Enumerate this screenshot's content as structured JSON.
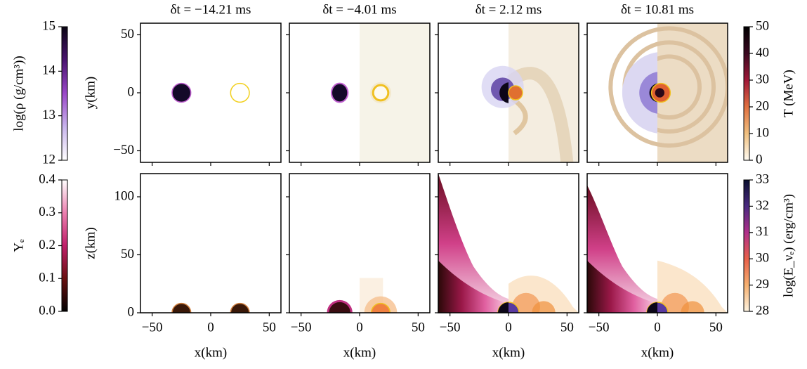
{
  "chart_data": {
    "type": "image-grid",
    "panel_titles": [
      "δt = −14.21 ms",
      "δt = −4.01 ms",
      "δt = 2.12 ms",
      "δt = 10.81 ms"
    ],
    "xlabel": "x(km)",
    "ylabel_top": "y(km)",
    "ylabel_bottom": "z(km)",
    "xlim": [
      -60,
      60
    ],
    "xticks": [
      {
        "value": -50,
        "label": "−50"
      },
      0,
      50
    ],
    "ylim_top": [
      -60,
      60
    ],
    "yticks_top": [
      {
        "value": -50,
        "label": "−50"
      },
      0,
      50
    ],
    "ylim_bottom": [
      0,
      120
    ],
    "yticks_bottom": [
      0,
      50,
      100
    ],
    "colorbars": [
      {
        "label": "log(ρ (g/cm³))",
        "lim": [
          12,
          15
        ],
        "ticks": [
          12,
          13,
          14,
          15
        ],
        "colors": [
          "#ffffff",
          "#c8b4ec",
          "#9a48c8",
          "#4a1470",
          "#0a0514"
        ]
      },
      {
        "label": "Yₑ",
        "lim": [
          0,
          0.4
        ],
        "ticks": [
          {
            "value": 0,
            "label": "0.0"
          },
          0.1,
          0.2,
          0.3,
          0.4
        ],
        "colors": [
          "#000000",
          "#6a1010",
          "#c0206a",
          "#ec80b0",
          "#ffffff"
        ]
      },
      {
        "label": "T (MeV)",
        "lim": [
          0,
          50
        ],
        "ticks": [
          0,
          10,
          20,
          30,
          40,
          50
        ],
        "colors": [
          "#fffbf2",
          "#f0c080",
          "#e07040",
          "#a01838",
          "#3a0820",
          "#000000"
        ]
      },
      {
        "label": "log(E_νₑ) (erg/cm³)",
        "lim": [
          28,
          33
        ],
        "ticks": [
          28,
          29,
          30,
          31,
          32,
          33
        ],
        "colors": [
          "#fdf3e0",
          "#f6b070",
          "#e8604a",
          "#b0308a",
          "#4a2a80",
          "#0a1030"
        ]
      }
    ]
  }
}
